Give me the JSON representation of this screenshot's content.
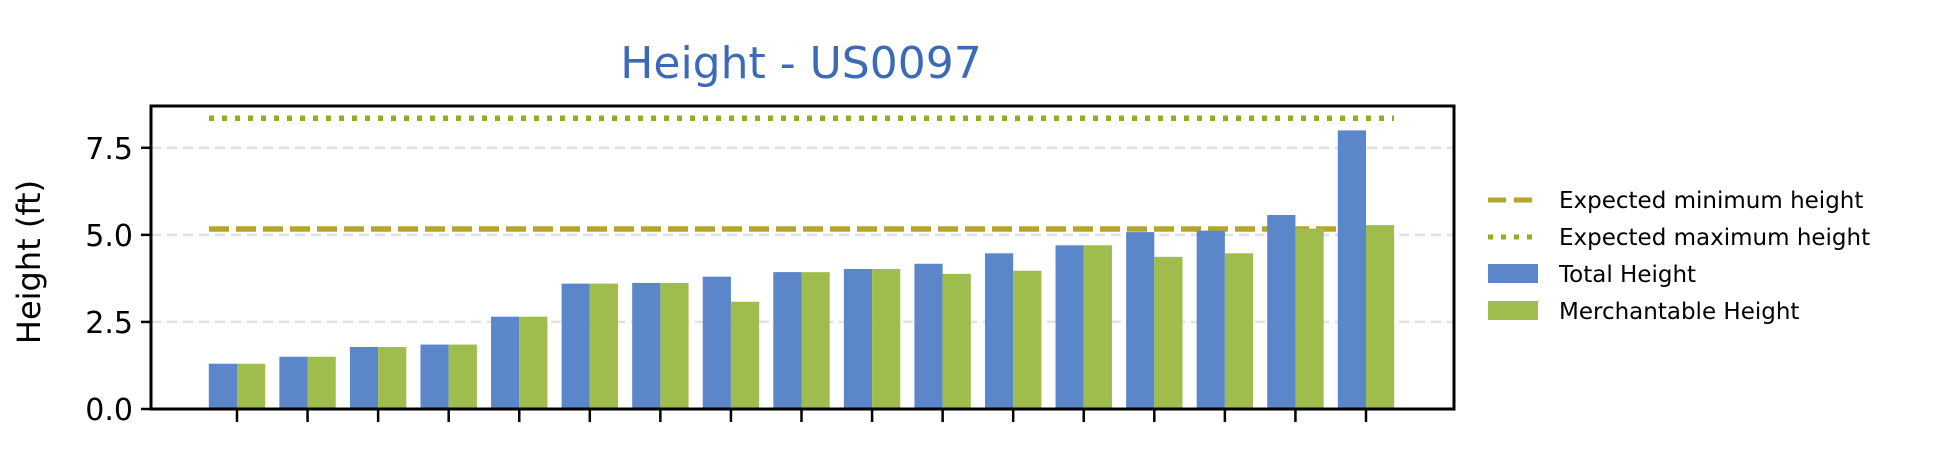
{
  "chart_data": {
    "type": "bar",
    "title": "Height - US0097",
    "xlabel": "",
    "ylabel": "Height (ft)",
    "ylim": [
      0,
      8.7
    ],
    "yticks": [
      "0.0",
      "2.5",
      "5.0",
      "7.5"
    ],
    "ytick_values": [
      0,
      2.5,
      5.0,
      7.5
    ],
    "grid": "horizontal dashed",
    "legend_position": "right",
    "series": [
      {
        "name": "Total Height",
        "color": "#5b86c9",
        "values": [
          1.3,
          1.5,
          1.78,
          1.85,
          2.65,
          3.6,
          3.62,
          3.8,
          3.93,
          4.02,
          4.17,
          4.47,
          4.7,
          5.08,
          5.12,
          5.57,
          8.0
        ]
      },
      {
        "name": "Merchantable Height",
        "color": "#9fbd4c",
        "values": [
          1.3,
          1.5,
          1.78,
          1.85,
          2.65,
          3.6,
          3.62,
          3.08,
          3.93,
          4.02,
          3.88,
          3.97,
          4.7,
          4.37,
          4.47,
          5.18,
          5.28
        ]
      }
    ],
    "reference_lines": [
      {
        "name": "Expected minimum height",
        "value": 5.17,
        "style": "dashed",
        "color": "#b5a62a"
      },
      {
        "name": "Expected maximum height",
        "value": 8.35,
        "style": "dotted",
        "color": "#8fae24"
      }
    ],
    "title_color": "#3c6ab7"
  }
}
